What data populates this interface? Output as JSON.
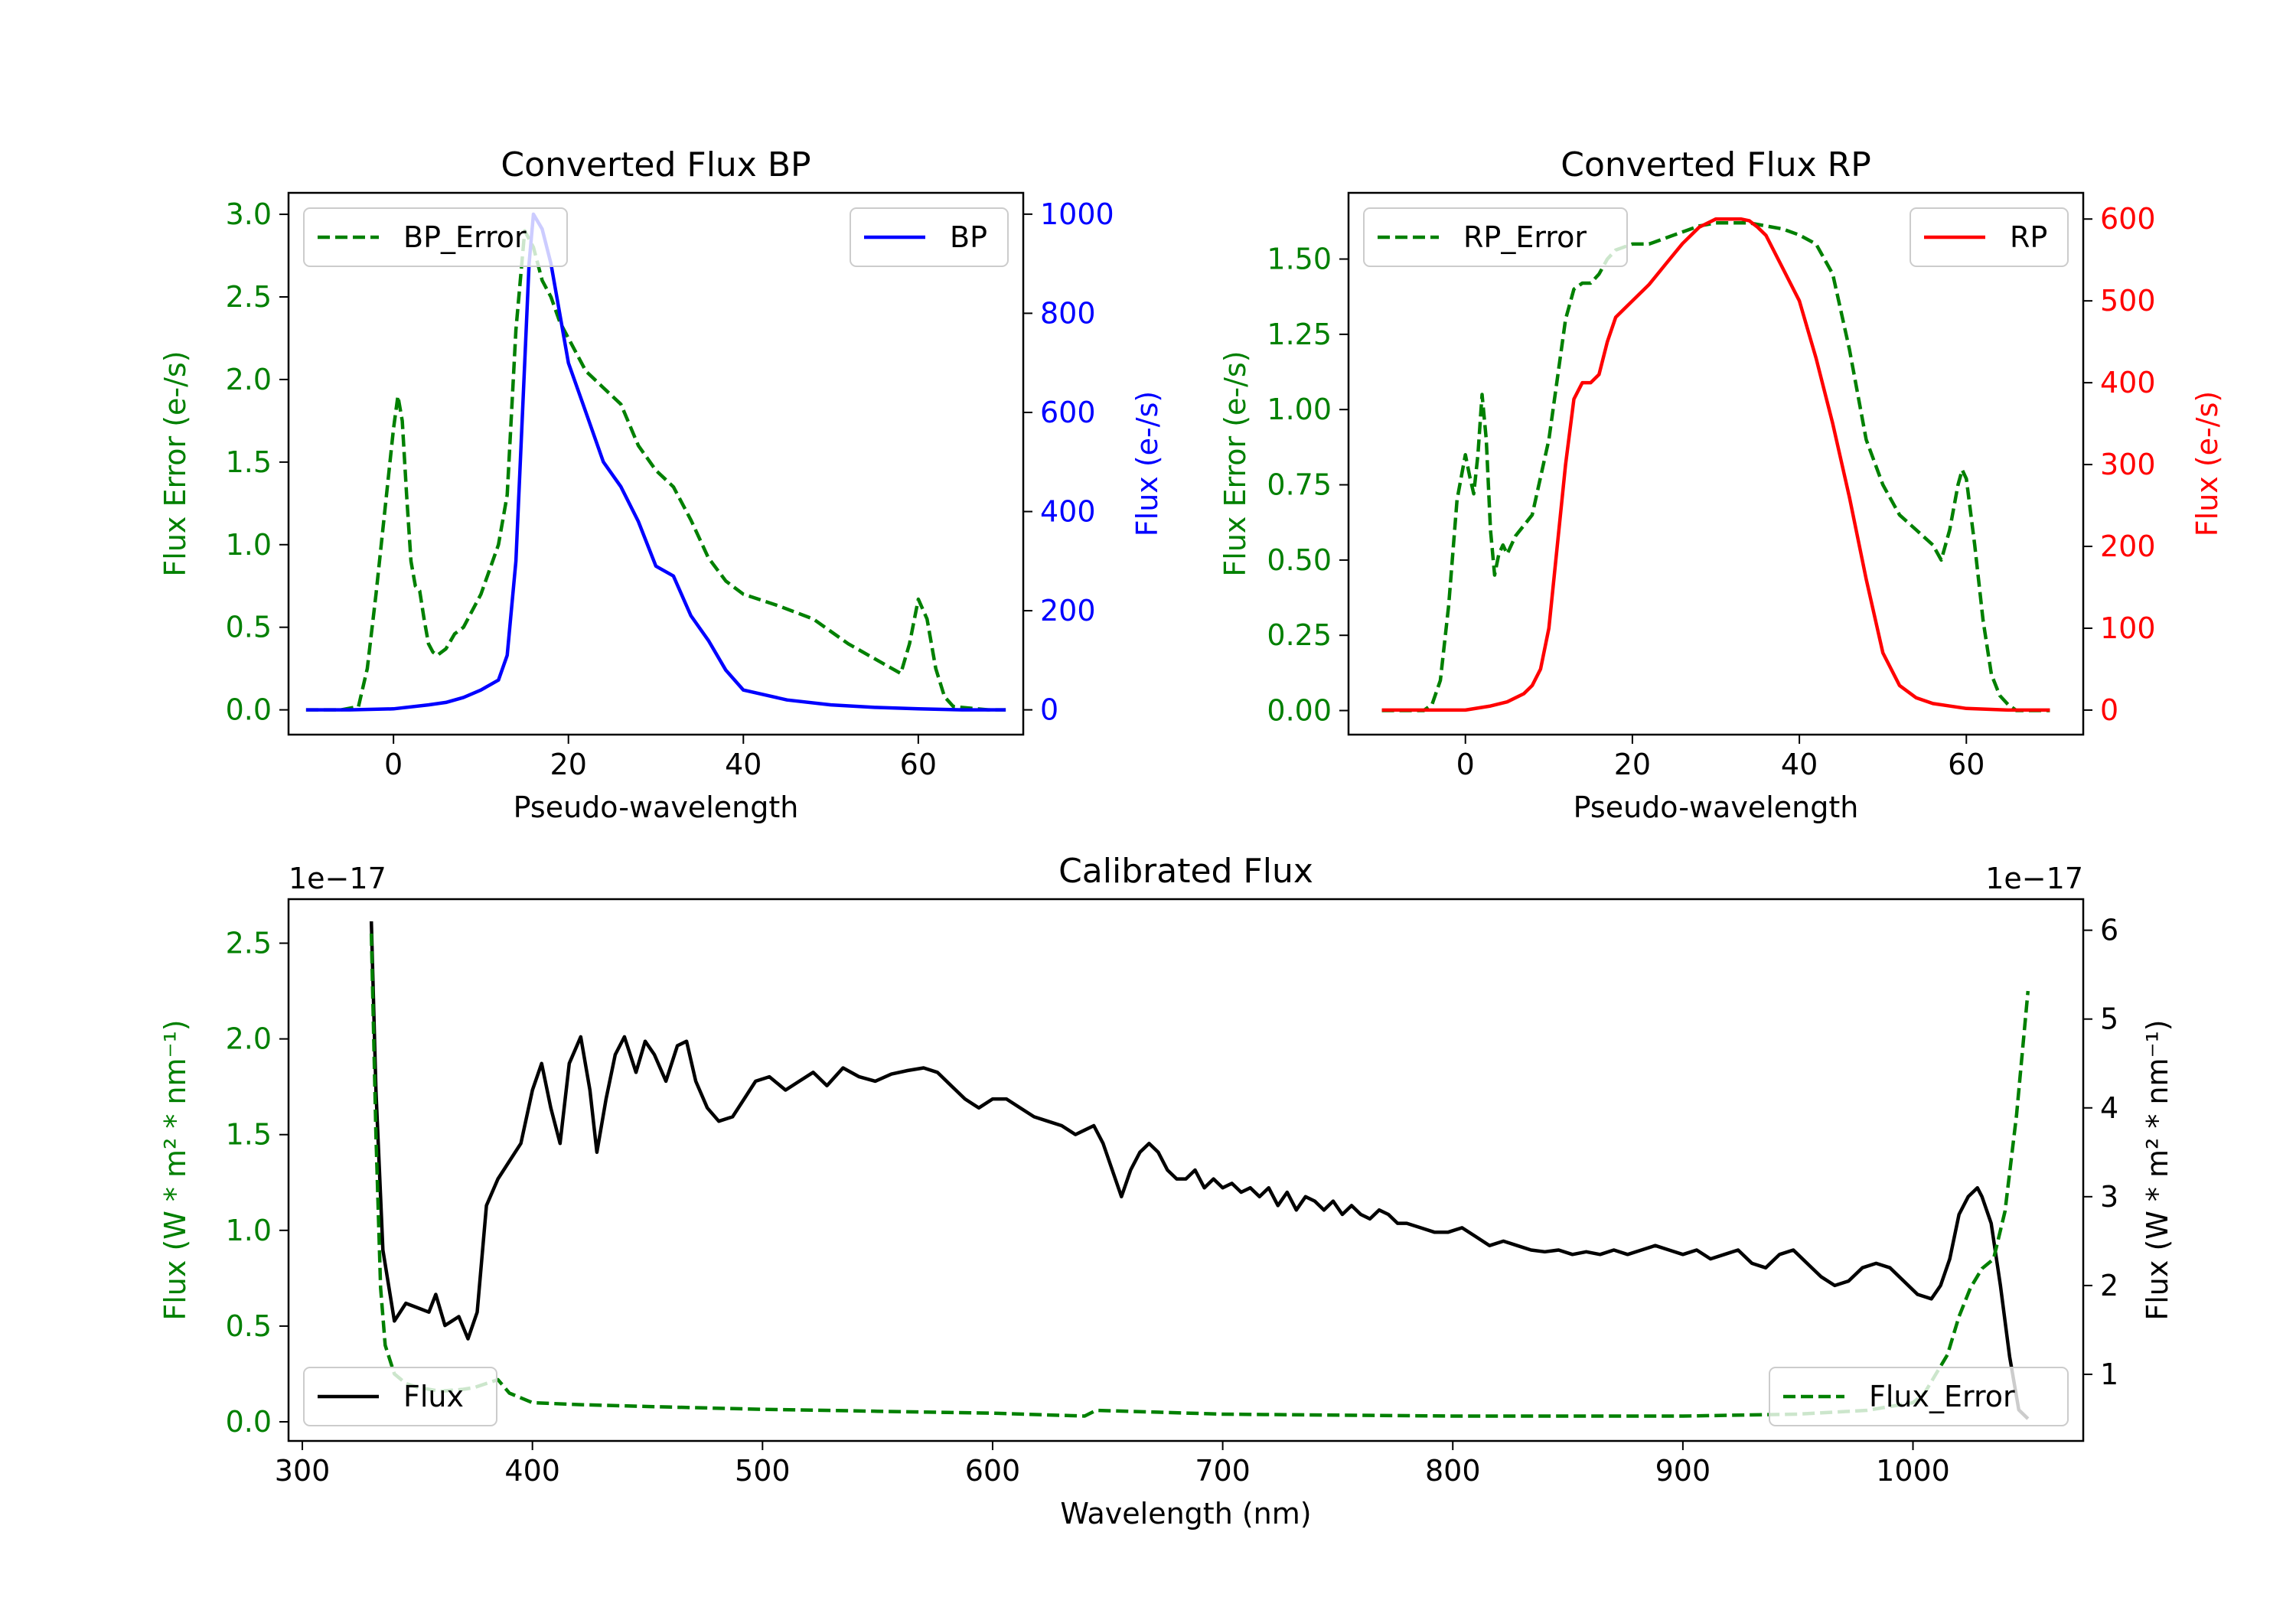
{
  "chart_data": [
    {
      "type": "line",
      "title": "Converted Flux BP",
      "xlabel": "Pseudo-wavelength",
      "ylabel_left": "Flux Error (e-/s)",
      "ylabel_right": "Flux (e-/s)",
      "xlim": [
        -12,
        72
      ],
      "ylim_left": [
        -0.15,
        3.13
      ],
      "ylim_right": [
        -50,
        1043
      ],
      "xticks": [
        0,
        20,
        40,
        60
      ],
      "xtick_labels": [
        "0",
        "20",
        "40",
        "60"
      ],
      "yticks_left": [
        0.0,
        0.5,
        1.0,
        1.5,
        2.0,
        2.5,
        3.0
      ],
      "ytick_labels_left": [
        "0.0",
        "0.5",
        "1.0",
        "1.5",
        "2.0",
        "2.5",
        "3.0"
      ],
      "yticks_right": [
        0,
        200,
        400,
        600,
        800,
        1000
      ],
      "ytick_labels_right": [
        "0",
        "200",
        "400",
        "600",
        "800",
        "1000"
      ],
      "series": [
        {
          "name": "BP_Error",
          "axis": "left",
          "color": "#008000",
          "dashed": true,
          "x": [
            -10,
            -6,
            -4,
            -3,
            -2,
            -1,
            0,
            0.5,
            1,
            1.5,
            2,
            2.5,
            3,
            3.5,
            4,
            4.5,
            5,
            6,
            7,
            8,
            9,
            10,
            11,
            12,
            13,
            14,
            15,
            16,
            17,
            18,
            19,
            20,
            22,
            24,
            26,
            28,
            30,
            32,
            34,
            36,
            38,
            40,
            44,
            48,
            52,
            56,
            58,
            59,
            60,
            61,
            62,
            63,
            64,
            66,
            68,
            70
          ],
          "y": [
            0,
            0,
            0.02,
            0.25,
            0.7,
            1.2,
            1.7,
            1.9,
            1.75,
            1.3,
            0.9,
            0.75,
            0.72,
            0.55,
            0.4,
            0.35,
            0.33,
            0.37,
            0.46,
            0.5,
            0.6,
            0.7,
            0.85,
            1.0,
            1.3,
            2.3,
            2.9,
            2.8,
            2.6,
            2.5,
            2.35,
            2.25,
            2.05,
            1.95,
            1.85,
            1.6,
            1.45,
            1.35,
            1.15,
            0.92,
            0.78,
            0.7,
            0.63,
            0.55,
            0.4,
            0.28,
            0.22,
            0.4,
            0.67,
            0.55,
            0.25,
            0.08,
            0.02,
            0.01,
            0,
            0
          ]
        },
        {
          "name": "BP",
          "axis": "right",
          "color": "#0000ff",
          "dashed": false,
          "x": [
            -10,
            -5,
            0,
            4,
            6,
            8,
            10,
            12,
            13,
            14,
            15,
            15.5,
            16,
            17,
            18,
            19,
            20,
            22,
            24,
            26,
            28,
            30,
            32,
            34,
            36,
            38,
            40,
            45,
            50,
            55,
            60,
            65,
            70
          ],
          "y": [
            0,
            0,
            2,
            10,
            15,
            25,
            40,
            60,
            110,
            300,
            700,
            900,
            1000,
            970,
            900,
            800,
            700,
            600,
            500,
            450,
            380,
            290,
            270,
            190,
            140,
            80,
            40,
            20,
            10,
            5,
            2,
            0,
            0
          ]
        }
      ],
      "legend": [
        {
          "label": "BP_Error",
          "position": "upper left"
        },
        {
          "label": "BP",
          "position": "upper right"
        }
      ]
    },
    {
      "type": "line",
      "title": "Converted Flux RP",
      "xlabel": "Pseudo-wavelength",
      "ylabel_left": "Flux Error (e-/s)",
      "ylabel_right": "Flux (e-/s)",
      "xlim": [
        -14,
        74
      ],
      "ylim_left": [
        -0.08,
        1.72
      ],
      "ylim_right": [
        -30,
        632
      ],
      "xticks": [
        0,
        20,
        40,
        60
      ],
      "xtick_labels": [
        "0",
        "20",
        "40",
        "60"
      ],
      "yticks_left": [
        0.0,
        0.25,
        0.5,
        0.75,
        1.0,
        1.25,
        1.5
      ],
      "ytick_labels_left": [
        "0.00",
        "0.25",
        "0.50",
        "0.75",
        "1.00",
        "1.25",
        "1.50"
      ],
      "yticks_right": [
        0,
        100,
        200,
        300,
        400,
        500,
        600
      ],
      "ytick_labels_right": [
        "0",
        "100",
        "200",
        "300",
        "400",
        "500",
        "600"
      ],
      "series": [
        {
          "name": "RP_Error",
          "axis": "left",
          "color": "#008000",
          "dashed": true,
          "x": [
            -10,
            -5,
            -4,
            -3,
            -2,
            -1,
            0,
            0.5,
            1,
            1.5,
            2,
            2.5,
            3,
            3.5,
            4,
            4.5,
            5,
            6,
            8,
            10,
            11,
            12,
            13,
            14,
            15,
            16,
            17,
            18,
            20,
            22,
            24,
            26,
            28,
            30,
            32,
            34,
            36,
            38,
            40,
            42,
            44,
            46,
            48,
            50,
            52,
            54,
            56,
            57,
            58,
            59,
            59.5,
            60,
            61,
            62,
            63,
            64,
            65,
            66,
            68,
            70
          ],
          "y": [
            0,
            0,
            0.02,
            0.1,
            0.35,
            0.7,
            0.85,
            0.78,
            0.72,
            0.85,
            1.05,
            0.9,
            0.6,
            0.45,
            0.52,
            0.55,
            0.52,
            0.58,
            0.65,
            0.9,
            1.1,
            1.3,
            1.4,
            1.42,
            1.42,
            1.45,
            1.5,
            1.53,
            1.55,
            1.55,
            1.57,
            1.59,
            1.61,
            1.62,
            1.62,
            1.62,
            1.61,
            1.6,
            1.58,
            1.55,
            1.45,
            1.2,
            0.9,
            0.75,
            0.65,
            0.6,
            0.55,
            0.5,
            0.6,
            0.75,
            0.8,
            0.77,
            0.55,
            0.3,
            0.12,
            0.05,
            0.02,
            0,
            0,
            0
          ]
        },
        {
          "name": "RP",
          "axis": "right",
          "color": "#ff0000",
          "dashed": false,
          "x": [
            -10,
            -5,
            0,
            3,
            5,
            7,
            8,
            9,
            10,
            11,
            12,
            13,
            14,
            15,
            16,
            17,
            18,
            19,
            20,
            22,
            24,
            26,
            28,
            30,
            31,
            32,
            33,
            34,
            35,
            36,
            38,
            40,
            42,
            44,
            46,
            48,
            50,
            52,
            54,
            56,
            60,
            65,
            70
          ],
          "y": [
            0,
            0,
            0,
            5,
            10,
            20,
            30,
            50,
            100,
            200,
            300,
            380,
            400,
            400,
            410,
            450,
            480,
            490,
            500,
            520,
            545,
            570,
            590,
            600,
            600,
            600,
            600,
            598,
            590,
            580,
            540,
            500,
            430,
            350,
            260,
            160,
            70,
            30,
            15,
            8,
            2,
            0,
            0
          ]
        }
      ],
      "legend": [
        {
          "label": "RP_Error",
          "position": "upper left"
        },
        {
          "label": "RP",
          "position": "upper right"
        }
      ]
    },
    {
      "type": "line",
      "title": "Calibrated Flux",
      "xlabel": "Wavelength (nm)",
      "ylabel_left": "Flux (W * m² * nm⁻¹)",
      "ylabel_right": "Flux (W * m² * nm⁻¹)",
      "offset_label_left": "1e−17",
      "offset_label_right": "1e−17",
      "xlim": [
        294,
        1074
      ],
      "ylim_left": [
        -0.1,
        2.73
      ],
      "ylim_right": [
        0.25,
        6.35
      ],
      "xticks": [
        300,
        400,
        500,
        600,
        700,
        800,
        900,
        1000
      ],
      "xtick_labels": [
        "300",
        "400",
        "500",
        "600",
        "700",
        "800",
        "900",
        "1000"
      ],
      "yticks_left": [
        0.0,
        0.5,
        1.0,
        1.5,
        2.0,
        2.5
      ],
      "ytick_labels_left": [
        "0.0",
        "0.5",
        "1.0",
        "1.5",
        "2.0",
        "2.5"
      ],
      "yticks_right": [
        1,
        2,
        3,
        4,
        5,
        6
      ],
      "ytick_labels_right": [
        "1",
        "2",
        "3",
        "4",
        "5",
        "6"
      ],
      "series": [
        {
          "name": "Flux",
          "axis": "right",
          "color": "#000000",
          "dashed": false,
          "x": [
            330,
            332,
            335,
            340,
            345,
            350,
            355,
            358,
            362,
            365,
            368,
            372,
            376,
            380,
            385,
            390,
            395,
            400,
            404,
            408,
            412,
            416,
            421,
            425,
            428,
            432,
            436,
            440,
            445,
            449,
            453,
            458,
            463,
            467,
            471,
            476,
            481,
            487,
            492,
            497,
            503,
            510,
            516,
            522,
            528,
            535,
            542,
            549,
            556,
            563,
            570,
            576,
            582,
            588,
            594,
            600,
            606,
            612,
            618,
            624,
            630,
            636,
            640,
            644,
            648,
            652,
            656,
            660,
            664,
            668,
            672,
            676,
            680,
            684,
            688,
            692,
            696,
            700,
            704,
            708,
            712,
            716,
            720,
            724,
            728,
            732,
            736,
            740,
            744,
            748,
            752,
            756,
            760,
            764,
            768,
            772,
            776,
            780,
            786,
            792,
            798,
            804,
            810,
            816,
            822,
            828,
            834,
            840,
            846,
            852,
            858,
            864,
            870,
            876,
            882,
            888,
            894,
            900,
            906,
            912,
            918,
            924,
            930,
            936,
            942,
            948,
            954,
            960,
            966,
            972,
            978,
            984,
            990,
            996,
            1002,
            1008,
            1012,
            1016,
            1020,
            1024,
            1028,
            1030,
            1034,
            1038,
            1042,
            1046,
            1050
          ],
          "y": [
            6.1,
            4.2,
            2.4,
            1.6,
            1.8,
            1.75,
            1.7,
            1.9,
            1.55,
            1.6,
            1.65,
            1.4,
            1.7,
            2.9,
            3.2,
            3.4,
            3.6,
            4.2,
            4.5,
            4.0,
            3.6,
            4.5,
            4.8,
            4.2,
            3.5,
            4.1,
            4.6,
            4.8,
            4.4,
            4.75,
            4.6,
            4.3,
            4.7,
            4.75,
            4.3,
            4.0,
            3.85,
            3.9,
            4.1,
            4.3,
            4.35,
            4.2,
            4.3,
            4.4,
            4.25,
            4.45,
            4.35,
            4.3,
            4.38,
            4.42,
            4.45,
            4.4,
            4.25,
            4.1,
            4.0,
            4.1,
            4.1,
            4.0,
            3.9,
            3.85,
            3.8,
            3.7,
            3.75,
            3.8,
            3.6,
            3.3,
            3.0,
            3.3,
            3.5,
            3.6,
            3.5,
            3.3,
            3.2,
            3.2,
            3.3,
            3.1,
            3.2,
            3.1,
            3.15,
            3.05,
            3.1,
            3.0,
            3.1,
            2.9,
            3.05,
            2.85,
            3.0,
            2.95,
            2.85,
            2.95,
            2.8,
            2.9,
            2.8,
            2.75,
            2.85,
            2.8,
            2.7,
            2.7,
            2.65,
            2.6,
            2.6,
            2.65,
            2.55,
            2.45,
            2.5,
            2.45,
            2.4,
            2.38,
            2.4,
            2.35,
            2.38,
            2.35,
            2.4,
            2.35,
            2.4,
            2.45,
            2.4,
            2.35,
            2.4,
            2.3,
            2.35,
            2.4,
            2.25,
            2.2,
            2.35,
            2.4,
            2.25,
            2.1,
            2.0,
            2.05,
            2.2,
            2.25,
            2.2,
            2.05,
            1.9,
            1.85,
            2.0,
            2.3,
            2.8,
            3.0,
            3.1,
            3.0,
            2.7,
            2.0,
            1.2,
            0.6,
            0.5
          ]
        },
        {
          "name": "Flux_Error",
          "axis": "left",
          "color": "#008000",
          "dashed": true,
          "x": [
            330,
            332,
            334,
            336,
            340,
            345,
            350,
            360,
            370,
            375,
            380,
            385,
            390,
            400,
            420,
            450,
            500,
            550,
            600,
            640,
            645,
            700,
            800,
            900,
            950,
            980,
            1000,
            1005,
            1010,
            1015,
            1020,
            1025,
            1030,
            1035,
            1040,
            1045,
            1050
          ],
          "y": [
            2.55,
            1.5,
            0.7,
            0.4,
            0.25,
            0.2,
            0.18,
            0.16,
            0.17,
            0.18,
            0.2,
            0.22,
            0.15,
            0.1,
            0.09,
            0.08,
            0.065,
            0.055,
            0.045,
            0.03,
            0.06,
            0.04,
            0.03,
            0.03,
            0.04,
            0.06,
            0.1,
            0.15,
            0.25,
            0.35,
            0.55,
            0.7,
            0.8,
            0.85,
            1.1,
            1.6,
            2.25
          ]
        }
      ],
      "legend": [
        {
          "label": "Flux",
          "position": "lower left"
        },
        {
          "label": "Flux_Error",
          "position": "lower right"
        }
      ]
    }
  ]
}
